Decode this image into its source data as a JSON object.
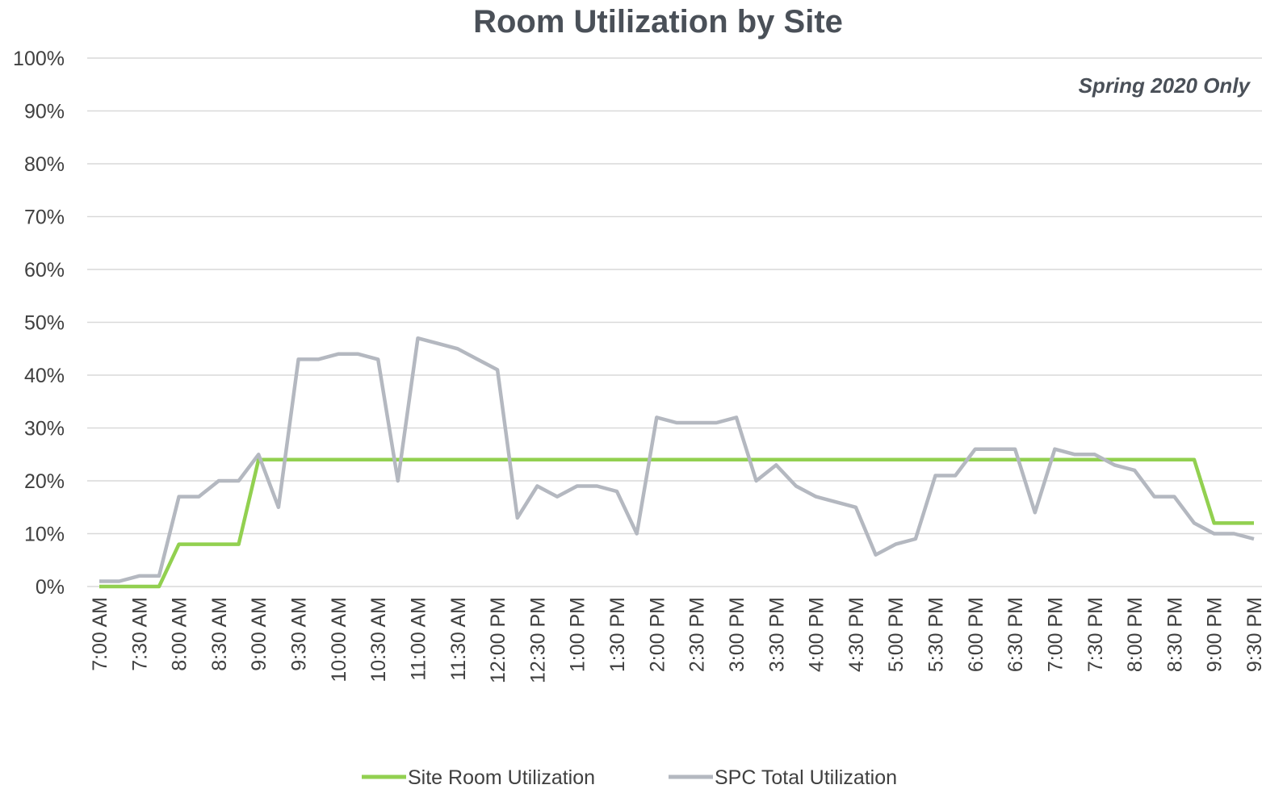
{
  "chart_data": {
    "type": "line",
    "title": "Room Utilization by Site",
    "subtitle": "Spring 2020 Only",
    "categories": [
      "7:00 AM",
      null,
      "7:30 AM",
      null,
      "8:00 AM",
      null,
      "8:30 AM",
      null,
      "9:00 AM",
      null,
      "9:30 AM",
      null,
      "10:00 AM",
      null,
      "10:30 AM",
      null,
      "11:00 AM",
      null,
      "11:30 AM",
      null,
      "12:00 PM",
      null,
      "12:30 PM",
      null,
      "1:00 PM",
      null,
      "1:30 PM",
      null,
      "2:00 PM",
      null,
      "2:30 PM",
      null,
      "3:00 PM",
      null,
      "3:30 PM",
      null,
      "4:00 PM",
      null,
      "4:30 PM",
      null,
      "5:00 PM",
      null,
      "5:30 PM",
      null,
      "6:00 PM",
      null,
      "6:30 PM",
      null,
      "7:00 PM",
      null,
      "7:30 PM",
      null,
      "8:00 PM",
      null,
      "8:30 PM",
      null,
      "9:00 PM",
      null,
      "9:30 PM"
    ],
    "series": [
      {
        "name": "Site Room Utilization",
        "color": "#92d050",
        "values": [
          0,
          0,
          0,
          0,
          8,
          8,
          8,
          8,
          24,
          24,
          24,
          24,
          24,
          24,
          24,
          24,
          24,
          24,
          24,
          24,
          24,
          24,
          24,
          24,
          24,
          24,
          24,
          24,
          24,
          24,
          24,
          24,
          24,
          24,
          24,
          24,
          24,
          24,
          24,
          24,
          24,
          24,
          24,
          24,
          24,
          24,
          24,
          24,
          24,
          24,
          24,
          24,
          24,
          24,
          24,
          24,
          12,
          12,
          12
        ]
      },
      {
        "name": "SPC Total Utilization",
        "color": "#b4b8c0",
        "values": [
          1,
          1,
          2,
          2,
          17,
          17,
          20,
          20,
          25,
          15,
          43,
          43,
          44,
          44,
          43,
          20,
          47,
          46,
          45,
          43,
          41,
          13,
          19,
          17,
          19,
          19,
          18,
          10,
          32,
          31,
          31,
          31,
          32,
          20,
          23,
          19,
          17,
          16,
          15,
          6,
          8,
          9,
          21,
          21,
          26,
          26,
          26,
          14,
          26,
          25,
          25,
          23,
          22,
          17,
          17,
          12,
          10,
          10,
          9
        ]
      }
    ],
    "ylim": [
      0,
      100
    ],
    "yticks": [
      {
        "value": 0,
        "label": "0%"
      },
      {
        "value": 10,
        "label": "10%"
      },
      {
        "value": 20,
        "label": "20%"
      },
      {
        "value": 30,
        "label": "30%"
      },
      {
        "value": 40,
        "label": "40%"
      },
      {
        "value": 50,
        "label": "50%"
      },
      {
        "value": 60,
        "label": "60%"
      },
      {
        "value": 70,
        "label": "70%"
      },
      {
        "value": 80,
        "label": "80%"
      },
      {
        "value": 90,
        "label": "90%"
      },
      {
        "value": 100,
        "label": "100%"
      }
    ],
    "grid": true,
    "legend": "bottom"
  }
}
